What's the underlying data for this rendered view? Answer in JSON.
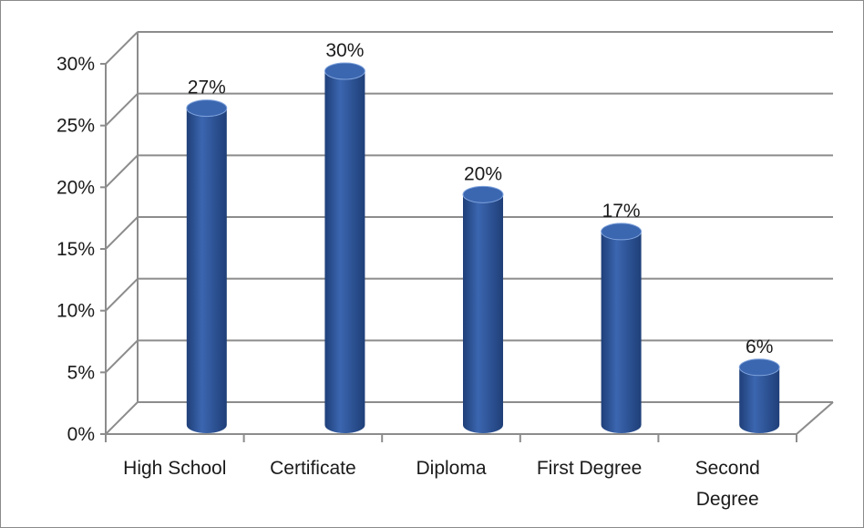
{
  "chart_data": {
    "type": "bar",
    "style": "3d-cylinder",
    "categories": [
      "High School",
      "Certificate",
      "Diploma",
      "First Degree",
      "Second Degree"
    ],
    "category_lines": [
      [
        "High School"
      ],
      [
        "Certificate"
      ],
      [
        "Diploma"
      ],
      [
        "First Degree"
      ],
      [
        "Second",
        "Degree"
      ]
    ],
    "values": [
      27,
      30,
      20,
      17,
      6
    ],
    "data_labels": [
      "27%",
      "30%",
      "20%",
      "17%",
      "6%"
    ],
    "yticks": [
      "0%",
      "5%",
      "10%",
      "15%",
      "20%",
      "25%",
      "30%"
    ],
    "ylim": [
      0,
      30
    ],
    "ystep": 5,
    "grid": true,
    "legend": "none",
    "bar_color": "#3b66b0",
    "bar_dark": "#1f3f78",
    "bar_light": "#7fa3dc",
    "grid_color": "#8c8c8c"
  }
}
